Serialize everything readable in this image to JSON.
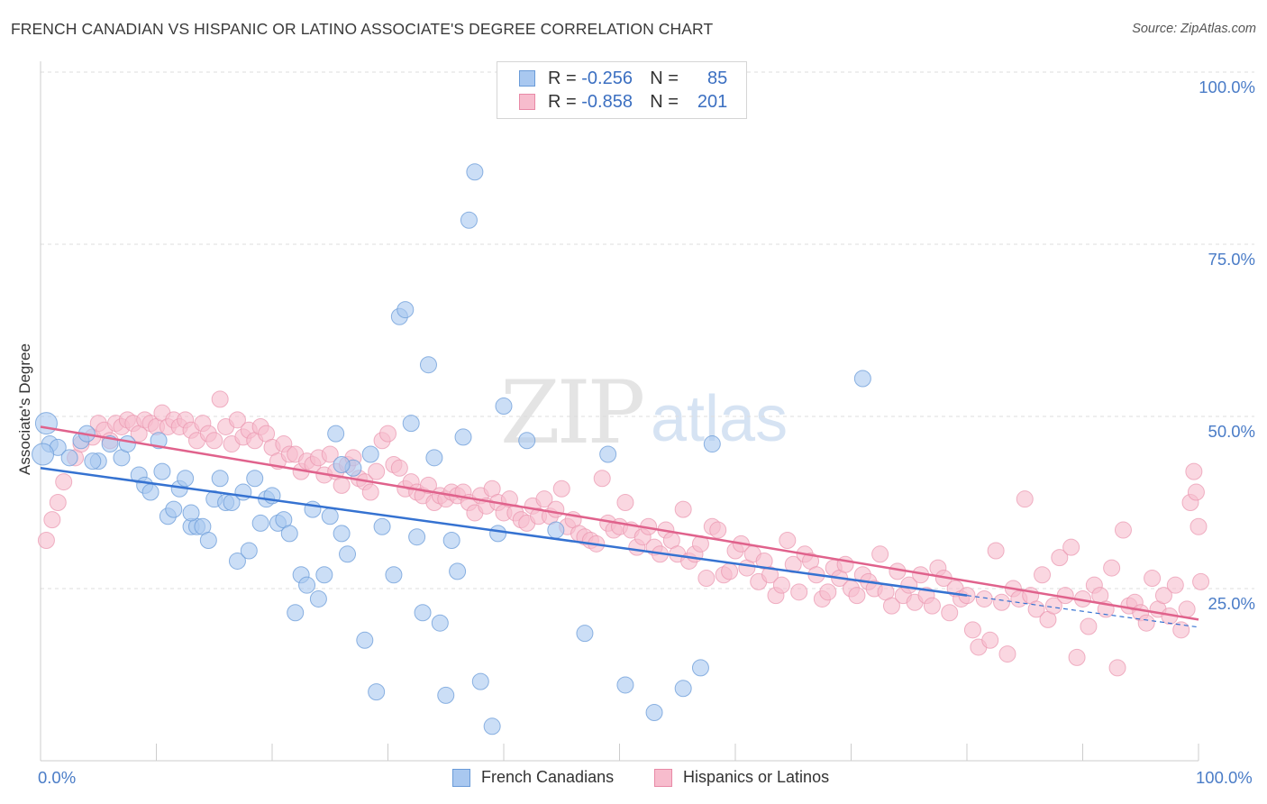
{
  "title": "FRENCH CANADIAN VS HISPANIC OR LATINO ASSOCIATE'S DEGREE CORRELATION CHART",
  "source": "Source: ZipAtlas.com",
  "watermark": {
    "zip": "ZIP",
    "atlas": "atlas"
  },
  "legend": {
    "rows": [
      {
        "r_label": "R =",
        "r_value": "-0.256",
        "n_label": "N =",
        "n_value": "85",
        "color": "#a9c8f0",
        "border": "#6a9bd8"
      },
      {
        "r_label": "R =",
        "r_value": "-0.858",
        "n_label": "N =",
        "n_value": "201",
        "color": "#f7bccd",
        "border": "#e889a6"
      }
    ]
  },
  "bottom_legend": [
    {
      "label": "French Canadians",
      "color": "#a9c8f0",
      "border": "#6a9bd8"
    },
    {
      "label": "Hispanics or Latinos",
      "color": "#f7bccd",
      "border": "#e889a6"
    }
  ],
  "colors": {
    "blue_point": "#a9c8f0",
    "blue_edge": "#6a9bd8",
    "blue_line": "#3572d1",
    "pink_point": "#f7bccd",
    "pink_edge": "#ea94ae",
    "pink_line": "#e0628c",
    "grid": "#dddddd",
    "tick_text": "#4a7cc7"
  },
  "chart_data": {
    "type": "scatter",
    "title": "FRENCH CANADIAN VS HISPANIC OR LATINO ASSOCIATE'S DEGREE CORRELATION CHART",
    "xlabel": "",
    "ylabel": "Associate's Degree",
    "xlim": [
      0,
      100
    ],
    "ylim": [
      0,
      100
    ],
    "x_tick_labels": [
      {
        "value": 0,
        "label": "0.0%"
      },
      {
        "value": 100,
        "label": "100.0%"
      }
    ],
    "y_tick_labels": [
      {
        "value": 25,
        "label": "25.0%"
      },
      {
        "value": 50,
        "label": "50.0%"
      },
      {
        "value": 75,
        "label": "75.0%"
      },
      {
        "value": 100,
        "label": "100.0%"
      }
    ],
    "grid": true,
    "legend_position": "top-center",
    "series": [
      {
        "name": "French Canadians",
        "r": -0.256,
        "n": 85,
        "trend": {
          "x": [
            0,
            80
          ],
          "y": [
            42.5,
            24.0
          ],
          "dashed_to": [
            100,
            19.4
          ]
        },
        "points": [
          [
            0.5,
            49
          ],
          [
            0.8,
            46
          ],
          [
            1.5,
            45.5
          ],
          [
            2.5,
            44
          ],
          [
            3.5,
            46.5
          ],
          [
            4,
            47.5
          ],
          [
            5,
            43.5
          ],
          [
            6,
            46
          ],
          [
            7,
            44
          ],
          [
            7.5,
            46
          ],
          [
            8.5,
            41.5
          ],
          [
            9,
            40
          ],
          [
            9.5,
            39
          ],
          [
            10.2,
            46.5
          ],
          [
            10.5,
            42
          ],
          [
            11,
            35.5
          ],
          [
            11.5,
            36.5
          ],
          [
            12,
            39.5
          ],
          [
            12.5,
            41
          ],
          [
            13,
            34
          ],
          [
            13.5,
            34
          ],
          [
            14,
            34
          ],
          [
            14.5,
            32
          ],
          [
            15,
            38
          ],
          [
            15.5,
            41
          ],
          [
            16,
            37.5
          ],
          [
            16.5,
            37.5
          ],
          [
            17,
            29
          ],
          [
            17.5,
            39
          ],
          [
            18,
            30.5
          ],
          [
            18.5,
            41
          ],
          [
            19,
            34.5
          ],
          [
            19.5,
            38
          ],
          [
            20,
            38.5
          ],
          [
            20.5,
            34.5
          ],
          [
            21,
            35
          ],
          [
            21.5,
            33
          ],
          [
            22,
            21.5
          ],
          [
            22.5,
            27
          ],
          [
            23,
            25.5
          ],
          [
            23.5,
            36.5
          ],
          [
            24,
            23.5
          ],
          [
            24.5,
            27
          ],
          [
            25,
            35.5
          ],
          [
            25.5,
            47.5
          ],
          [
            26,
            33
          ],
          [
            26.5,
            30
          ],
          [
            27,
            42.5
          ],
          [
            28,
            17.5
          ],
          [
            28.5,
            44.5
          ],
          [
            29,
            10
          ],
          [
            29.5,
            34
          ],
          [
            30.5,
            27
          ],
          [
            31,
            64.5
          ],
          [
            31.5,
            65.5
          ],
          [
            32,
            49
          ],
          [
            32.5,
            32.5
          ],
          [
            33,
            21.5
          ],
          [
            33.5,
            57.5
          ],
          [
            34,
            44
          ],
          [
            34.5,
            20
          ],
          [
            35,
            9.5
          ],
          [
            35.5,
            32
          ],
          [
            36,
            27.5
          ],
          [
            36.5,
            47
          ],
          [
            37,
            78.5
          ],
          [
            37.5,
            85.5
          ],
          [
            38,
            11.5
          ],
          [
            39,
            5
          ],
          [
            39.5,
            33
          ],
          [
            40,
            51.5
          ],
          [
            42,
            46.5
          ],
          [
            44.5,
            33.5
          ],
          [
            47,
            18.5
          ],
          [
            49,
            44.5
          ],
          [
            50.5,
            11
          ],
          [
            53,
            7
          ],
          [
            55.5,
            10.5
          ],
          [
            57,
            13.5
          ],
          [
            58,
            46
          ],
          [
            71,
            55.5
          ],
          [
            0.2,
            44.5
          ],
          [
            4.5,
            43.5
          ],
          [
            13,
            36
          ],
          [
            26,
            43
          ]
        ]
      },
      {
        "name": "Hispanics or Latinos",
        "r": -0.858,
        "n": 201,
        "trend": {
          "x": [
            0,
            100
          ],
          "y": [
            48.5,
            20.5
          ]
        },
        "points": [
          [
            0.5,
            32
          ],
          [
            1,
            35
          ],
          [
            1.5,
            37.5
          ],
          [
            2,
            40.5
          ],
          [
            3,
            44
          ],
          [
            3.5,
            46
          ],
          [
            4.5,
            47
          ],
          [
            5,
            49
          ],
          [
            5.5,
            48
          ],
          [
            6,
            46.5
          ],
          [
            6.5,
            49
          ],
          [
            7,
            48.5
          ],
          [
            7.5,
            49.5
          ],
          [
            8,
            49
          ],
          [
            8.5,
            47.5
          ],
          [
            9,
            49.5
          ],
          [
            9.5,
            49
          ],
          [
            10,
            48.5
          ],
          [
            10.5,
            50.5
          ],
          [
            11,
            48.5
          ],
          [
            11.5,
            49.5
          ],
          [
            12,
            48.5
          ],
          [
            12.5,
            49.5
          ],
          [
            13,
            48
          ],
          [
            13.5,
            46.5
          ],
          [
            14,
            49
          ],
          [
            14.5,
            47.5
          ],
          [
            15,
            46.5
          ],
          [
            15.5,
            52.5
          ],
          [
            16,
            48.5
          ],
          [
            16.5,
            46
          ],
          [
            17,
            49.5
          ],
          [
            17.5,
            47
          ],
          [
            18,
            48
          ],
          [
            18.5,
            46.5
          ],
          [
            19,
            48.5
          ],
          [
            19.5,
            47.5
          ],
          [
            20,
            45.5
          ],
          [
            20.5,
            43.5
          ],
          [
            21,
            46
          ],
          [
            21.5,
            44.5
          ],
          [
            22,
            44.5
          ],
          [
            22.5,
            42
          ],
          [
            23,
            43.5
          ],
          [
            23.5,
            43
          ],
          [
            24,
            44
          ],
          [
            24.5,
            41.5
          ],
          [
            25,
            44.5
          ],
          [
            25.5,
            42
          ],
          [
            26,
            40
          ],
          [
            26.5,
            43
          ],
          [
            27,
            44
          ],
          [
            27.5,
            41
          ],
          [
            28,
            40.5
          ],
          [
            28.5,
            39
          ],
          [
            29,
            42
          ],
          [
            29.5,
            46.5
          ],
          [
            30,
            47.5
          ],
          [
            30.5,
            43
          ],
          [
            31,
            42.5
          ],
          [
            31.5,
            39.5
          ],
          [
            32,
            40.5
          ],
          [
            32.5,
            39
          ],
          [
            33,
            38.5
          ],
          [
            33.5,
            40
          ],
          [
            34,
            37.5
          ],
          [
            34.5,
            38.5
          ],
          [
            35,
            38
          ],
          [
            35.5,
            39
          ],
          [
            36,
            38.5
          ],
          [
            36.5,
            39
          ],
          [
            37,
            37.5
          ],
          [
            37.5,
            36
          ],
          [
            38,
            38.5
          ],
          [
            38.5,
            37
          ],
          [
            39,
            39.5
          ],
          [
            39.5,
            37.5
          ],
          [
            40,
            36
          ],
          [
            40.5,
            38
          ],
          [
            41,
            36
          ],
          [
            41.5,
            35
          ],
          [
            42,
            34.5
          ],
          [
            42.5,
            37
          ],
          [
            43,
            35.5
          ],
          [
            43.5,
            38
          ],
          [
            44,
            35.5
          ],
          [
            44.5,
            36.5
          ],
          [
            45,
            39.5
          ],
          [
            45.5,
            34
          ],
          [
            46,
            35
          ],
          [
            46.5,
            33
          ],
          [
            47,
            32.5
          ],
          [
            47.5,
            32
          ],
          [
            48,
            31.5
          ],
          [
            48.5,
            41
          ],
          [
            49,
            34.5
          ],
          [
            49.5,
            33.5
          ],
          [
            50,
            34
          ],
          [
            50.5,
            37.5
          ],
          [
            51,
            33.5
          ],
          [
            51.5,
            31
          ],
          [
            52,
            32.5
          ],
          [
            52.5,
            34
          ],
          [
            53,
            31
          ],
          [
            53.5,
            30
          ],
          [
            54,
            33.5
          ],
          [
            54.5,
            32
          ],
          [
            55,
            30
          ],
          [
            55.5,
            36.5
          ],
          [
            56,
            29
          ],
          [
            56.5,
            30
          ],
          [
            57,
            31.5
          ],
          [
            57.5,
            26.5
          ],
          [
            58,
            34
          ],
          [
            58.5,
            33.5
          ],
          [
            59,
            27
          ],
          [
            59.5,
            27.5
          ],
          [
            60,
            30.5
          ],
          [
            60.5,
            31.5
          ],
          [
            61,
            28
          ],
          [
            61.5,
            30
          ],
          [
            62,
            26
          ],
          [
            62.5,
            29
          ],
          [
            63,
            27
          ],
          [
            63.5,
            24
          ],
          [
            64,
            25.5
          ],
          [
            64.5,
            32
          ],
          [
            65,
            28.5
          ],
          [
            65.5,
            24.5
          ],
          [
            66,
            30
          ],
          [
            66.5,
            29
          ],
          [
            67,
            27
          ],
          [
            67.5,
            23.5
          ],
          [
            68,
            24.5
          ],
          [
            68.5,
            28
          ],
          [
            69,
            26.5
          ],
          [
            69.5,
            28.5
          ],
          [
            70,
            25
          ],
          [
            70.5,
            24
          ],
          [
            71,
            27
          ],
          [
            71.5,
            26
          ],
          [
            72,
            25
          ],
          [
            72.5,
            30
          ],
          [
            73,
            24.5
          ],
          [
            73.5,
            22.5
          ],
          [
            74,
            27.5
          ],
          [
            74.5,
            24
          ],
          [
            75,
            25.5
          ],
          [
            75.5,
            23
          ],
          [
            76,
            27
          ],
          [
            76.5,
            24
          ],
          [
            77,
            22.5
          ],
          [
            77.5,
            28
          ],
          [
            78,
            26.5
          ],
          [
            78.5,
            21.5
          ],
          [
            79,
            25
          ],
          [
            79.5,
            23.5
          ],
          [
            80,
            24
          ],
          [
            80.5,
            19
          ],
          [
            81,
            16.5
          ],
          [
            81.5,
            23.5
          ],
          [
            82,
            17.5
          ],
          [
            82.5,
            30.5
          ],
          [
            83,
            23
          ],
          [
            83.5,
            15.5
          ],
          [
            84,
            25
          ],
          [
            84.5,
            23.5
          ],
          [
            85,
            38
          ],
          [
            85.5,
            24
          ],
          [
            86,
            22
          ],
          [
            86.5,
            27
          ],
          [
            87,
            20.5
          ],
          [
            87.5,
            22.5
          ],
          [
            88,
            29.5
          ],
          [
            88.5,
            24
          ],
          [
            89,
            31
          ],
          [
            89.5,
            15
          ],
          [
            90,
            23.5
          ],
          [
            90.5,
            19.5
          ],
          [
            91,
            25.5
          ],
          [
            91.5,
            24
          ],
          [
            92,
            22
          ],
          [
            92.5,
            28
          ],
          [
            93,
            13.5
          ],
          [
            93.5,
            33.5
          ],
          [
            94,
            22.5
          ],
          [
            94.5,
            23
          ],
          [
            95,
            21.5
          ],
          [
            95.5,
            20
          ],
          [
            96,
            26.5
          ],
          [
            96.5,
            22
          ],
          [
            97,
            24
          ],
          [
            97.5,
            21
          ],
          [
            98,
            25.5
          ],
          [
            98.5,
            19
          ],
          [
            99,
            22
          ],
          [
            99.3,
            37.5
          ],
          [
            99.6,
            42
          ],
          [
            99.8,
            39
          ],
          [
            100,
            34
          ],
          [
            100.2,
            26
          ]
        ]
      }
    ]
  }
}
